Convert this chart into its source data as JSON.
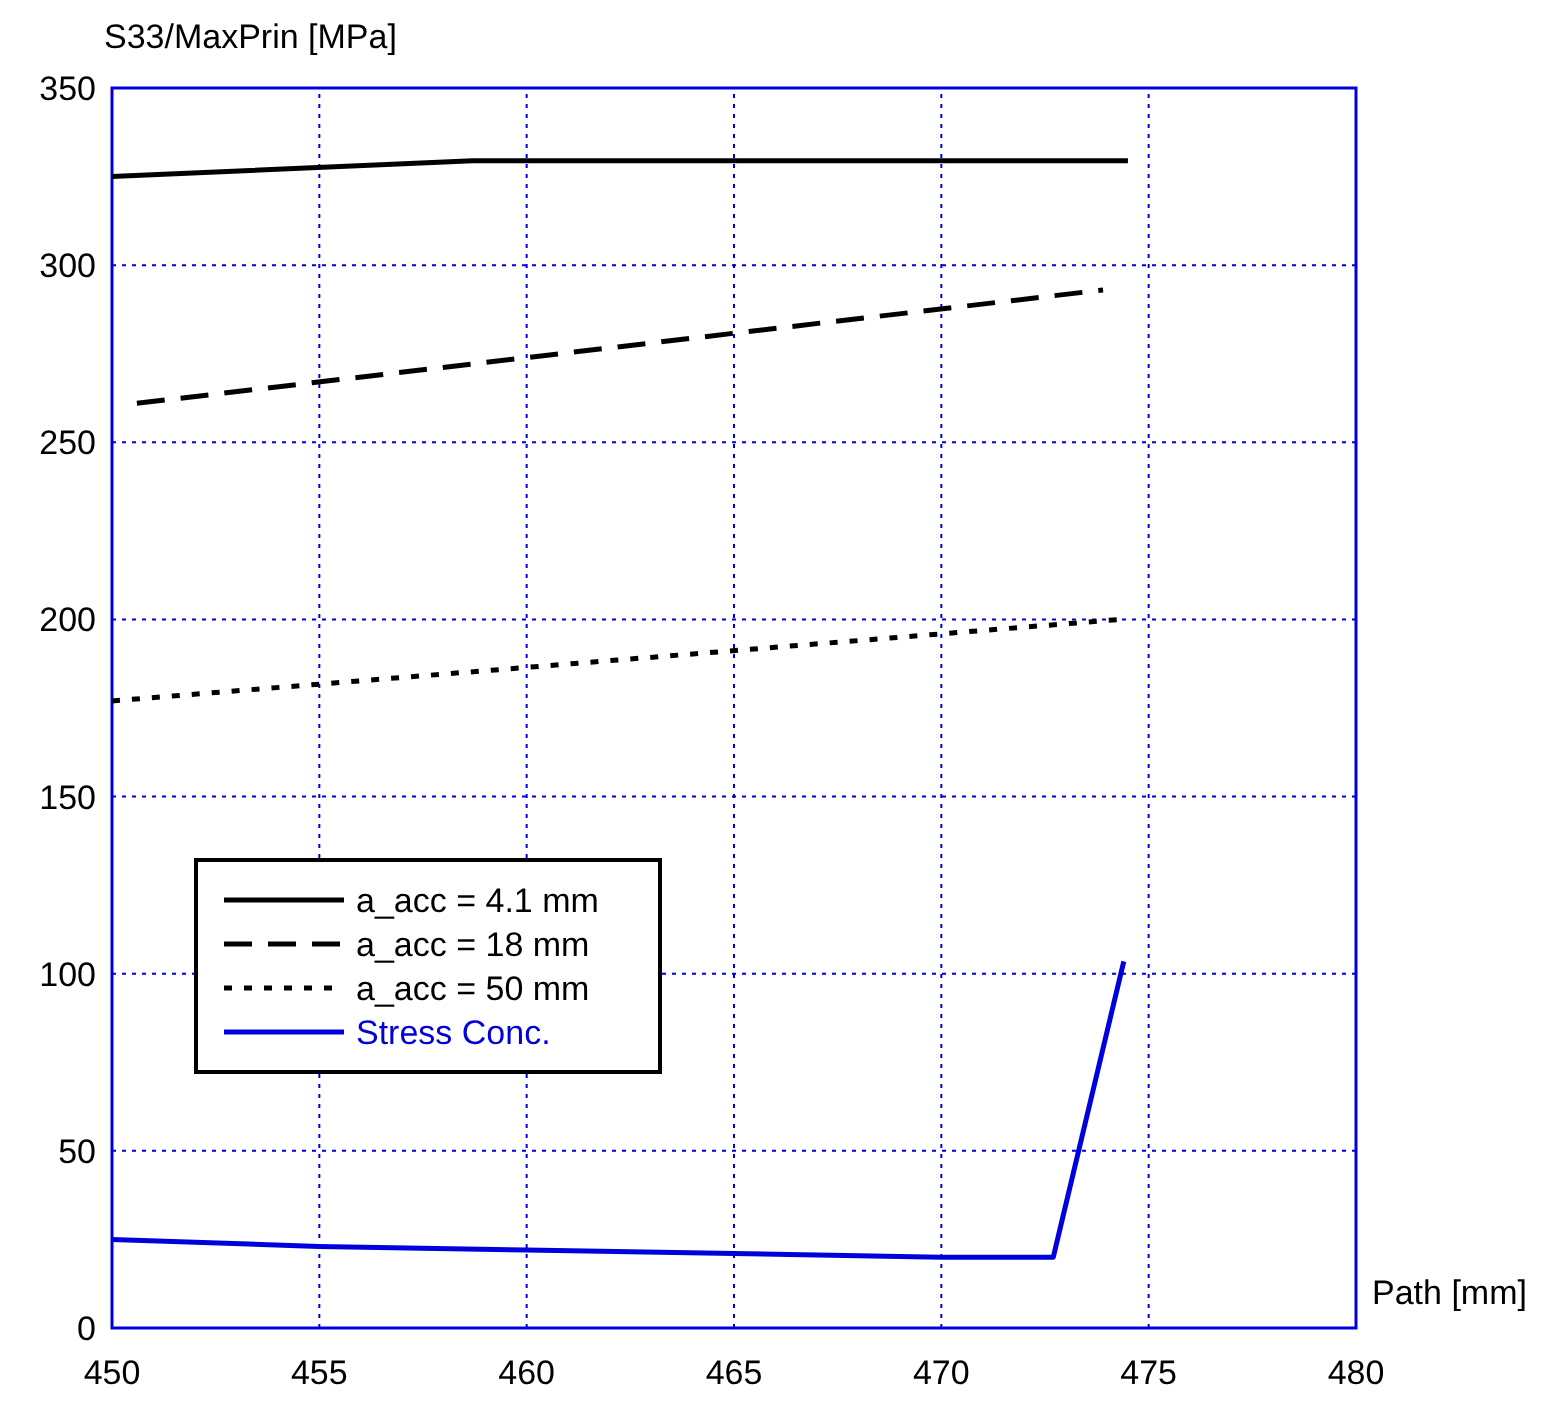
{
  "chart_data": {
    "type": "line",
    "xlabel": "Path [mm]",
    "ylabel": "S33/MaxPrin [MPa]",
    "xlim": [
      450,
      480
    ],
    "xticks": [
      450,
      455,
      460,
      465,
      470,
      475,
      480
    ],
    "ylim": [
      0,
      350
    ],
    "yticks": [
      0,
      50,
      100,
      150,
      200,
      250,
      300,
      350
    ],
    "grid": true,
    "legend": "left",
    "series": [
      {
        "name": "a_acc = 4.1 mm",
        "color": "#000000",
        "line_style": "solid",
        "x": [
          450,
          458.7,
          474.5
        ],
        "values": [
          325,
          329.5,
          329.5
        ]
      },
      {
        "name": "a_acc = 18 mm",
        "color": "#000000",
        "line_style": "dashed",
        "x": [
          450.6,
          473.9
        ],
        "values": [
          261,
          293
        ]
      },
      {
        "name": "a_acc = 50 mm",
        "color": "#000000",
        "line_style": "dotted",
        "x": [
          450,
          474.3
        ],
        "values": [
          177,
          200
        ]
      },
      {
        "name": "Stress Conc.",
        "color": "#0000dd",
        "line_style": "solid",
        "x": [
          450,
          455,
          460,
          465,
          470,
          472.7,
          474.4
        ],
        "values": [
          25,
          23,
          22,
          21,
          20,
          20,
          103.5
        ]
      }
    ]
  }
}
